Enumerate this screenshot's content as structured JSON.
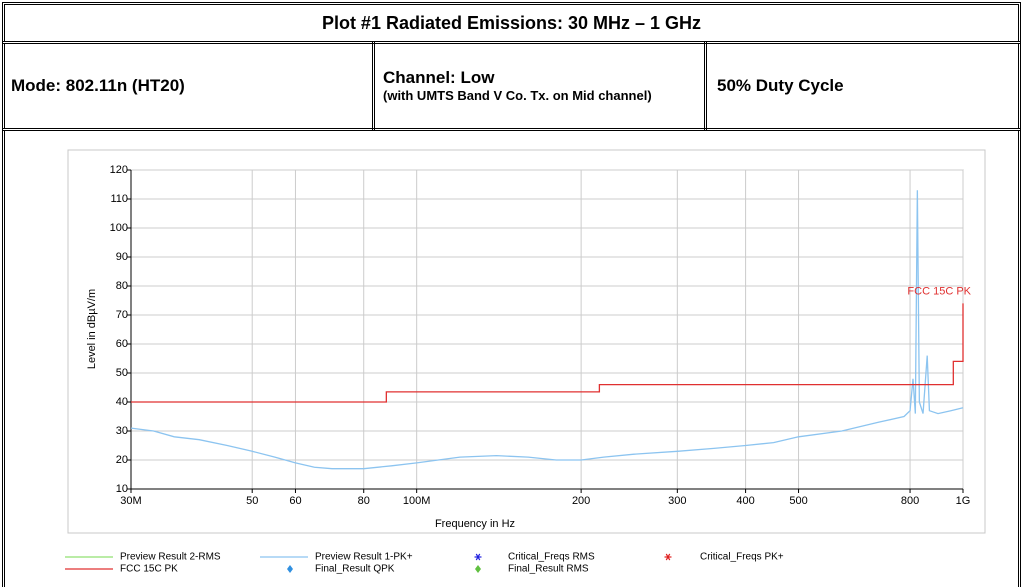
{
  "table": {
    "title": "Plot #1 Radiated Emissions: 30 MHz – 1 GHz",
    "mode": "Mode: 802.11n (HT20)",
    "channel": "Channel: Low",
    "channel_note": "(with UMTS Band V Co. Tx. on Mid channel)",
    "duty": "50% Duty Cycle"
  },
  "chart_data": {
    "type": "line",
    "xlabel": "Frequency in Hz",
    "ylabel": "Level in dBµV/m",
    "xscale": "log",
    "grid": true,
    "xlim": [
      30000000,
      1000000000
    ],
    "xticks": [
      {
        "value": 30000000,
        "label": "30M"
      },
      {
        "value": 50000000,
        "label": "50"
      },
      {
        "value": 60000000,
        "label": "60"
      },
      {
        "value": 80000000,
        "label": "80"
      },
      {
        "value": 100000000,
        "label": "100M"
      },
      {
        "value": 200000000,
        "label": "200"
      },
      {
        "value": 300000000,
        "label": "300"
      },
      {
        "value": 400000000,
        "label": "400"
      },
      {
        "value": 500000000,
        "label": "500"
      },
      {
        "value": 800000000,
        "label": "800"
      },
      {
        "value": 1000000000,
        "label": "1G"
      }
    ],
    "ylim": [
      10,
      120
    ],
    "yticks": [
      10,
      20,
      30,
      40,
      50,
      60,
      70,
      80,
      90,
      100,
      110,
      120
    ],
    "annotations": [
      {
        "text": "FCC 15C PK",
        "x": 1000000000,
        "y": 78,
        "color": "#e03030"
      }
    ],
    "series": [
      {
        "name": "Preview Result 2-RMS",
        "color": "#90e070",
        "marker": "line",
        "x": [],
        "values": []
      },
      {
        "name": "Preview Result 1-PK+",
        "color": "#8cc4f0",
        "marker": "line",
        "x": [
          30000000,
          33000000,
          36000000,
          40000000,
          45000000,
          50000000,
          55000000,
          60000000,
          65000000,
          70000000,
          80000000,
          90000000,
          100000000,
          120000000,
          140000000,
          160000000,
          180000000,
          200000000,
          220000000,
          250000000,
          300000000,
          350000000,
          400000000,
          450000000,
          500000000,
          600000000,
          700000000,
          780000000,
          800000000,
          810000000,
          818000000,
          825000000,
          832000000,
          845000000,
          860000000,
          868000000,
          900000000,
          950000000,
          1000000000
        ],
        "values": [
          31,
          30,
          28,
          27,
          25,
          23,
          21,
          19,
          17.5,
          17,
          17,
          18,
          19,
          21,
          21.5,
          21,
          20,
          20,
          21,
          22,
          23,
          24,
          25,
          26,
          28,
          30,
          33,
          35,
          37,
          48,
          36,
          113,
          40,
          36,
          56,
          37,
          36,
          37,
          38
        ]
      },
      {
        "name": "Critical_Freqs RMS",
        "color": "#2020e0",
        "marker": "asterisk",
        "x": [],
        "values": []
      },
      {
        "name": "Critical_Freqs PK+",
        "color": "#e02020",
        "marker": "asterisk",
        "x": [],
        "values": []
      },
      {
        "name": "FCC 15C PK",
        "color": "#e03030",
        "marker": "line",
        "x": [
          30000000,
          88000000,
          88000000,
          216000000,
          216000000,
          960000000,
          960000000,
          1000000000,
          1000000000
        ],
        "values": [
          40,
          40,
          43.5,
          43.5,
          46,
          46,
          54,
          54,
          74
        ]
      },
      {
        "name": "Final_Result QPK",
        "color": "#3090e0",
        "marker": "diamond",
        "x": [],
        "values": []
      },
      {
        "name": "Final_Result RMS",
        "color": "#60c040",
        "marker": "diamond",
        "x": [],
        "values": []
      }
    ]
  }
}
